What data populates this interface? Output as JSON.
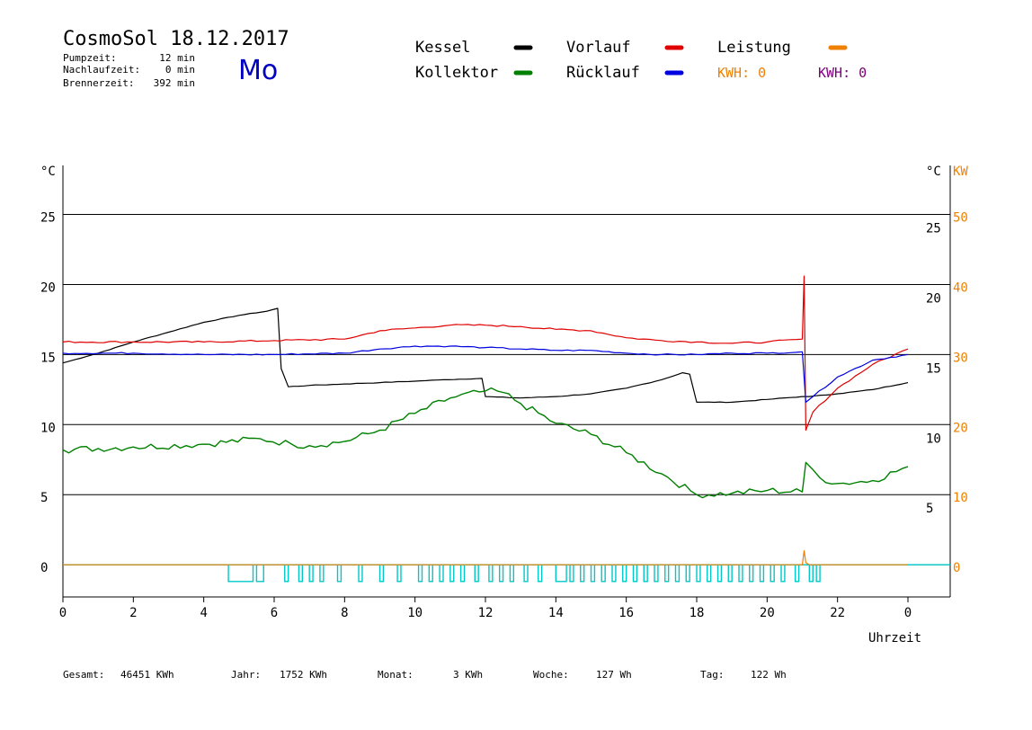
{
  "header": {
    "title": "CosmoSol 18.12.2017",
    "weekday": "Mo",
    "stats": [
      {
        "label": "Pumpzeit:",
        "value": "12 min"
      },
      {
        "label": "Nachlaufzeit:",
        "value": "0 min"
      },
      {
        "label": "Brennerzeit:",
        "value": "392 min"
      }
    ]
  },
  "legend": {
    "items": [
      {
        "label": "Kessel",
        "color": "#000000"
      },
      {
        "label": "Kollektor",
        "color": "#008000"
      },
      {
        "label": "Vorlauf",
        "color": "#e00000"
      },
      {
        "label": "Rücklauf",
        "color": "#0000e0"
      },
      {
        "label": "Leistung",
        "color": "#f08000"
      }
    ],
    "kwh_orange": "KWH: 0",
    "kwh_purple": "KWH: 0",
    "kwh_orange_color": "#f08000",
    "kwh_purple_color": "#800080"
  },
  "footer": {
    "items": [
      {
        "label": "Gesamt:",
        "value": "46451 KWh"
      },
      {
        "label": "Jahr:",
        "value": "1752 KWh"
      },
      {
        "label": "Monat:",
        "value": "3 KWh"
      },
      {
        "label": "Woche:",
        "value": "127 Wh"
      },
      {
        "label": "Tag:",
        "value": "122 Wh"
      }
    ]
  },
  "chart_data": {
    "type": "line",
    "xlabel": "Uhrzeit",
    "x_ticks": [
      "0",
      "2",
      "4",
      "6",
      "8",
      "10",
      "12",
      "14",
      "16",
      "18",
      "20",
      "22",
      "0"
    ],
    "xlim": [
      0,
      24
    ],
    "y_left_label": "°C",
    "y_left_ticks": [
      "0",
      "5",
      "10",
      "15",
      "20",
      "25"
    ],
    "y_left_lim": [
      -2.3,
      28.5
    ],
    "y_right_label": "°C",
    "y_right_ticks": [
      "5",
      "10",
      "15",
      "20",
      "25"
    ],
    "y_kw_label": "KW",
    "y_kw_ticks": [
      "0",
      "10",
      "20",
      "30",
      "40",
      "50"
    ],
    "y_kw_lim": [
      -4.6,
      57
    ],
    "grid": "horizontal",
    "series": [
      {
        "name": "Kessel",
        "color": "#000000",
        "x": [
          0,
          1,
          2,
          3,
          4,
          5,
          5.8,
          6.1,
          6.2,
          6.4,
          7,
          8,
          9,
          10,
          10.8,
          11.9,
          12.0,
          13,
          14,
          15,
          16,
          17,
          17.6,
          17.8,
          18,
          19,
          20,
          21,
          21.2,
          22,
          23,
          24
        ],
        "y": [
          14.4,
          15.1,
          15.9,
          16.6,
          17.3,
          17.8,
          18.1,
          18.3,
          14,
          12.7,
          12.8,
          12.9,
          13.0,
          13.1,
          13.2,
          13.3,
          12.0,
          11.9,
          12.0,
          12.2,
          12.6,
          13.2,
          13.7,
          13.6,
          11.6,
          11.6,
          11.8,
          12.0,
          12.0,
          12.2,
          12.5,
          13.0
        ]
      },
      {
        "name": "Kollektor",
        "color": "#008000",
        "x": [
          0,
          2,
          4,
          5.6,
          6.5,
          7,
          8,
          9,
          10,
          11,
          12,
          12.5,
          13,
          14,
          15,
          16,
          17,
          18,
          19,
          20,
          21,
          21.1,
          21.5,
          22,
          23,
          24
        ],
        "y": [
          8.2,
          8.4,
          8.6,
          9.0,
          8.6,
          8.5,
          8.8,
          9.6,
          10.8,
          11.9,
          12.4,
          12.3,
          11.5,
          10.1,
          9.3,
          8.0,
          6.5,
          5.0,
          5.1,
          5.3,
          5.2,
          7.3,
          6.2,
          5.8,
          6.0,
          7.0
        ]
      },
      {
        "name": "Vorlauf",
        "color": "#e00000",
        "x": [
          0,
          2,
          4,
          6,
          8,
          9,
          10,
          11,
          12,
          13,
          14,
          15,
          16,
          17,
          18,
          19,
          20,
          21,
          21.05,
          21.1,
          21.3,
          22,
          23,
          24
        ],
        "y": [
          15.9,
          15.9,
          15.9,
          16.0,
          16.1,
          16.7,
          16.9,
          17.1,
          17.1,
          17.0,
          16.8,
          16.7,
          16.2,
          16.0,
          15.9,
          15.8,
          15.9,
          16.1,
          20.6,
          9.6,
          10.9,
          12.6,
          14.3,
          15.4
        ]
      },
      {
        "name": "Rücklauf",
        "color": "#0000e0",
        "x": [
          0,
          2,
          4,
          6,
          8,
          9,
          10,
          11,
          12,
          13,
          14,
          15,
          16,
          17,
          18,
          19,
          20,
          21,
          21.1,
          21.3,
          22,
          23,
          24
        ],
        "y": [
          15.1,
          15.1,
          15.0,
          15.0,
          15.1,
          15.4,
          15.6,
          15.6,
          15.5,
          15.4,
          15.3,
          15.3,
          15.1,
          15.0,
          15.0,
          15.1,
          15.1,
          15.2,
          11.6,
          12.0,
          13.4,
          14.6,
          15.0
        ]
      },
      {
        "name": "Leistung",
        "color": "#f08000",
        "x": [
          0,
          21.0,
          21.05,
          21.1,
          21.2,
          24
        ],
        "y": [
          0,
          0,
          2.0,
          0.3,
          0,
          0
        ]
      }
    ],
    "pump_signal": {
      "color": "#00c8c8",
      "intervals": [
        [
          4.7,
          5.4
        ],
        [
          5.5,
          5.7
        ],
        [
          6.3,
          6.4
        ],
        [
          6.7,
          6.8
        ],
        [
          7.0,
          7.1
        ],
        [
          7.3,
          7.4
        ],
        [
          7.8,
          7.9
        ],
        [
          8.4,
          8.5
        ],
        [
          9.0,
          9.1
        ],
        [
          9.5,
          9.6
        ],
        [
          10.1,
          10.2
        ],
        [
          10.4,
          10.5
        ],
        [
          10.7,
          10.8
        ],
        [
          11.0,
          11.1
        ],
        [
          11.3,
          11.4
        ],
        [
          11.7,
          11.8
        ],
        [
          12.1,
          12.2
        ],
        [
          12.4,
          12.5
        ],
        [
          12.7,
          12.8
        ],
        [
          13.1,
          13.2
        ],
        [
          13.5,
          13.6
        ],
        [
          14.0,
          14.3
        ],
        [
          14.4,
          14.5
        ],
        [
          14.7,
          14.8
        ],
        [
          15.0,
          15.1
        ],
        [
          15.3,
          15.4
        ],
        [
          15.6,
          15.7
        ],
        [
          15.9,
          16.0
        ],
        [
          16.2,
          16.3
        ],
        [
          16.5,
          16.6
        ],
        [
          16.8,
          16.9
        ],
        [
          17.1,
          17.2
        ],
        [
          17.4,
          17.5
        ],
        [
          17.7,
          17.8
        ],
        [
          18.0,
          18.1
        ],
        [
          18.3,
          18.4
        ],
        [
          18.6,
          18.7
        ],
        [
          18.9,
          19.0
        ],
        [
          19.2,
          19.3
        ],
        [
          19.5,
          19.6
        ],
        [
          19.8,
          19.9
        ],
        [
          20.1,
          20.2
        ],
        [
          20.4,
          20.5
        ],
        [
          20.8,
          20.9
        ],
        [
          21.2,
          21.3
        ],
        [
          21.4,
          21.5
        ]
      ]
    }
  }
}
